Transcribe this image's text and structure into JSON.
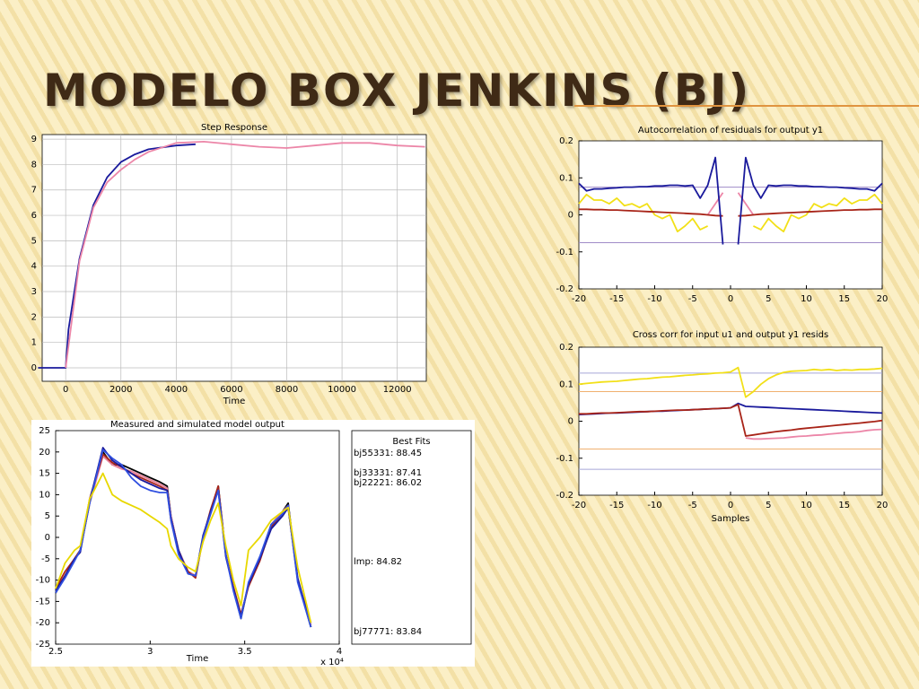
{
  "slide_title": "MODELO BOX JENKINS (BJ)",
  "chart_data": [
    {
      "type": "line",
      "title": "Step Response",
      "xlabel": "Time",
      "xlim": [
        -850,
        13050
      ],
      "xticks": [
        0,
        2000,
        4000,
        6000,
        8000,
        10000,
        12000
      ],
      "ylim": [
        -0.53,
        9.18
      ],
      "yticks": [
        0,
        1,
        2,
        3,
        4,
        5,
        6,
        7,
        8,
        9
      ],
      "grid": true,
      "series": [
        {
          "color": "#1a1a9c",
          "x": [
            -1000,
            0,
            100,
            500,
            1000,
            1500,
            2000,
            2500,
            3000,
            4000,
            4700
          ],
          "values": [
            0,
            0,
            1.5,
            4.3,
            6.4,
            7.5,
            8.1,
            8.4,
            8.6,
            8.75,
            8.8
          ]
        },
        {
          "color": "#ec86a8",
          "x": [
            0,
            500,
            1000,
            1500,
            2000,
            2500,
            3000,
            4000,
            5000,
            6000,
            7000,
            8000,
            9000,
            10000,
            11000,
            12000,
            13000
          ],
          "values": [
            0,
            4.2,
            6.3,
            7.3,
            7.8,
            8.2,
            8.5,
            8.85,
            8.9,
            8.8,
            8.7,
            8.65,
            8.75,
            8.85,
            8.85,
            8.75,
            8.7
          ]
        }
      ]
    },
    {
      "type": "line",
      "title": "Autocorrelation of residuals for output y1",
      "xlim": [
        -20,
        20
      ],
      "xticks": [
        -20,
        -15,
        -10,
        -5,
        0,
        5,
        10,
        15,
        20
      ],
      "ylim": [
        -0.2,
        0.2
      ],
      "yticks": [
        -0.2,
        -0.1,
        0,
        0.1,
        0.2
      ],
      "grid": false,
      "reference_lines": [
        {
          "value": 0.075,
          "color": "#a08cc8"
        },
        {
          "value": -0.075,
          "color": "#a08cc8"
        }
      ],
      "x": [
        -20,
        -19,
        -18,
        -17,
        -16,
        -15,
        -14,
        -13,
        -12,
        -11,
        -10,
        -9,
        -8,
        -7,
        -6,
        -5,
        -4,
        -3,
        -2,
        -1,
        0,
        1,
        2,
        3,
        4,
        5,
        6,
        7,
        8,
        9,
        10,
        11,
        12,
        13,
        14,
        15,
        16,
        17,
        18,
        19,
        20
      ],
      "series": [
        {
          "color": "#f2e018",
          "values": [
            0.03,
            0.055,
            0.04,
            0.04,
            0.03,
            0.045,
            0.025,
            0.03,
            0.02,
            0.03,
            0.0,
            -0.01,
            0.0,
            -0.045,
            -0.03,
            -0.01,
            -0.04,
            -0.03,
            null,
            null,
            null,
            null,
            null,
            -0.03,
            -0.04,
            -0.01,
            -0.03,
            -0.045,
            0.0,
            -0.01,
            0.0,
            0.03,
            0.02,
            0.03,
            0.025,
            0.045,
            0.03,
            0.04,
            0.04,
            0.055,
            0.03
          ]
        },
        {
          "color": "#ec86a8",
          "values": [
            null,
            null,
            null,
            null,
            null,
            null,
            null,
            null,
            null,
            null,
            null,
            null,
            null,
            null,
            null,
            null,
            null,
            0.0,
            0.03,
            0.06,
            null,
            0.06,
            0.03,
            0.0,
            null,
            null,
            null,
            null,
            null,
            null,
            null,
            null,
            null,
            null,
            null,
            null,
            null,
            null,
            null,
            null,
            null
          ]
        },
        {
          "color": "#a82418",
          "values": [
            0.015,
            0.015,
            0.014,
            0.014,
            0.013,
            0.013,
            0.012,
            0.011,
            0.01,
            0.009,
            0.008,
            0.007,
            0.006,
            0.005,
            0.004,
            0.003,
            0.002,
            0.0,
            -0.002,
            -0.003,
            null,
            -0.003,
            -0.002,
            0.0,
            0.002,
            0.003,
            0.004,
            0.005,
            0.006,
            0.007,
            0.008,
            0.009,
            0.01,
            0.011,
            0.012,
            0.013,
            0.013,
            0.014,
            0.014,
            0.015,
            0.015
          ]
        },
        {
          "color": "#1a1a9c",
          "values": [
            0.085,
            0.065,
            0.07,
            0.07,
            0.072,
            0.073,
            0.075,
            0.075,
            0.076,
            0.076,
            0.078,
            0.078,
            0.08,
            0.08,
            0.078,
            0.08,
            0.045,
            0.08,
            0.155,
            -0.08,
            null,
            -0.08,
            0.155,
            0.08,
            0.045,
            0.08,
            0.078,
            0.08,
            0.08,
            0.078,
            0.078,
            0.076,
            0.076,
            0.075,
            0.075,
            0.073,
            0.072,
            0.07,
            0.07,
            0.065,
            0.085
          ]
        }
      ]
    },
    {
      "type": "line",
      "title": "Cross corr for input u1 and output y1 resids",
      "xlabel": "Samples",
      "xlim": [
        -20,
        20
      ],
      "xticks": [
        -20,
        -15,
        -10,
        -5,
        0,
        5,
        10,
        15,
        20
      ],
      "ylim": [
        -0.2,
        0.2
      ],
      "yticks": [
        -0.2,
        -0.1,
        0,
        0.1,
        0.2
      ],
      "grid": false,
      "reference_lines": [
        {
          "value": 0.13,
          "color": "#a8a8d8"
        },
        {
          "value": -0.13,
          "color": "#a8a8d8"
        },
        {
          "value": 0.08,
          "color": "#f0b070"
        },
        {
          "value": -0.075,
          "color": "#f0b070"
        }
      ],
      "x": [
        -20,
        -19,
        -18,
        -17,
        -16,
        -15,
        -14,
        -13,
        -12,
        -11,
        -10,
        -9,
        -8,
        -7,
        -6,
        -5,
        -4,
        -3,
        -2,
        -1,
        0,
        1,
        2,
        3,
        4,
        5,
        6,
        7,
        8,
        9,
        10,
        11,
        12,
        13,
        14,
        15,
        16,
        17,
        18,
        19,
        20
      ],
      "series": [
        {
          "color": "#f2e018",
          "values": [
            0.1,
            0.102,
            0.104,
            0.106,
            0.107,
            0.108,
            0.11,
            0.112,
            0.114,
            0.115,
            0.117,
            0.119,
            0.12,
            0.122,
            0.124,
            0.125,
            0.127,
            0.128,
            0.13,
            0.131,
            0.133,
            0.145,
            0.065,
            0.08,
            0.1,
            0.115,
            0.125,
            0.132,
            0.135,
            0.136,
            0.137,
            0.14,
            0.138,
            0.14,
            0.137,
            0.139,
            0.138,
            0.14,
            0.14,
            0.141,
            0.143
          ]
        },
        {
          "color": "#ec86a8",
          "values": [
            null,
            null,
            null,
            null,
            null,
            null,
            null,
            null,
            null,
            null,
            null,
            null,
            null,
            null,
            null,
            null,
            null,
            null,
            null,
            null,
            null,
            null,
            -0.045,
            -0.048,
            -0.048,
            -0.047,
            -0.046,
            -0.045,
            -0.043,
            -0.041,
            -0.04,
            -0.038,
            -0.037,
            -0.035,
            -0.033,
            -0.031,
            -0.03,
            -0.028,
            -0.025,
            -0.023,
            -0.022
          ]
        },
        {
          "color": "#1a1a9c",
          "values": [
            0.018,
            0.019,
            0.02,
            0.021,
            0.022,
            0.022,
            0.023,
            0.024,
            0.025,
            0.026,
            0.027,
            0.027,
            0.028,
            0.029,
            0.03,
            0.031,
            0.032,
            0.033,
            0.034,
            0.035,
            0.036,
            0.048,
            0.04,
            0.039,
            0.038,
            0.037,
            0.036,
            0.035,
            0.034,
            0.033,
            0.032,
            0.031,
            0.03,
            0.029,
            0.028,
            0.027,
            0.026,
            0.025,
            0.024,
            0.023,
            0.022
          ]
        },
        {
          "color": "#a82418",
          "values": [
            0.02,
            0.02,
            0.021,
            0.022,
            0.022,
            0.023,
            0.024,
            0.025,
            0.026,
            0.026,
            0.027,
            0.028,
            0.029,
            0.03,
            0.03,
            0.031,
            0.032,
            0.033,
            0.034,
            0.035,
            0.036,
            0.045,
            -0.04,
            -0.037,
            -0.034,
            -0.031,
            -0.028,
            -0.026,
            -0.024,
            -0.021,
            -0.019,
            -0.017,
            -0.015,
            -0.013,
            -0.011,
            -0.009,
            -0.007,
            -0.005,
            -0.003,
            -0.001,
            0.002
          ]
        }
      ]
    },
    {
      "type": "line",
      "title": "Measured and simulated model output",
      "xlabel": "Time",
      "x_multiplier": "x 10⁴",
      "legend_title": "Best Fits",
      "xlim": [
        2.5,
        4
      ],
      "xticks": [
        2.5,
        3,
        3.5,
        4
      ],
      "ylim": [
        -25,
        25
      ],
      "yticks": [
        -25,
        -20,
        -15,
        -10,
        -5,
        0,
        5,
        10,
        15,
        20,
        25
      ],
      "grid": false,
      "x": [
        2.5,
        2.55,
        2.6,
        2.63,
        2.68,
        2.75,
        2.8,
        2.85,
        2.9,
        2.95,
        3.0,
        3.05,
        3.09,
        3.11,
        3.15,
        3.2,
        3.24,
        3.28,
        3.32,
        3.36,
        3.4,
        3.44,
        3.48,
        3.52,
        3.58,
        3.64,
        3.7,
        3.73,
        3.78,
        3.85
      ],
      "series": [
        {
          "color": "#000000",
          "values": [
            -13,
            -9,
            -5,
            -3,
            8,
            20,
            17,
            17,
            16,
            15,
            14,
            13,
            12,
            5,
            -3,
            -8,
            -9,
            0,
            6,
            12,
            -4,
            -12,
            -19,
            -11,
            -5,
            3,
            6,
            8,
            -10,
            -21
          ]
        },
        {
          "name": "bj55331: 88.45",
          "color": "#e8809a",
          "values": [
            -12,
            -9,
            -5,
            -3,
            8,
            19,
            17,
            16,
            15.5,
            14.5,
            13.5,
            12.5,
            11.5,
            5,
            -3,
            -8,
            -9,
            0,
            6,
            11.5,
            -4,
            -12,
            -18.5,
            -11,
            -5,
            3,
            6,
            7.5,
            -10,
            -20.5
          ]
        },
        {
          "name": "bj33331: 87.41",
          "color": "#a82418",
          "values": [
            -12,
            -8,
            -5,
            -3,
            9,
            19.5,
            17.5,
            16.5,
            15,
            14,
            13,
            12,
            11,
            4,
            -3.5,
            -8,
            -9.5,
            0,
            6.5,
            12,
            -4,
            -11.5,
            -18,
            -11.5,
            -5.5,
            2.5,
            5.5,
            7,
            -10,
            -20
          ]
        },
        {
          "name": "bj22221: 86.02",
          "color": "#1a1a9c",
          "values": [
            -12.5,
            -9,
            -5,
            -3.5,
            8.5,
            21,
            18,
            16.5,
            15,
            13.5,
            12.5,
            11.5,
            11,
            4.5,
            -3,
            -8.5,
            -9,
            0.5,
            6,
            11,
            -4.5,
            -12,
            -18.5,
            -11,
            -5,
            2,
            5,
            7,
            -9.5,
            -21
          ]
        },
        {
          "name": "lmp: 84.82",
          "color": "#3050e0",
          "values": [
            -13,
            -9.5,
            -5.5,
            -3,
            8,
            20.5,
            18.5,
            17,
            14,
            12,
            11,
            10.5,
            10.5,
            4,
            -4,
            -8.5,
            -9,
            0,
            5.5,
            11,
            -4,
            -12.5,
            -19,
            -10.5,
            -4.5,
            3,
            5.5,
            7.5,
            -10.5,
            -21
          ]
        },
        {
          "name": "bj77771: 83.84",
          "color": "#e8d800",
          "values": [
            -12,
            -6,
            -3,
            -2,
            9,
            15,
            10,
            8.5,
            7.5,
            6.5,
            5,
            3.5,
            2,
            -2,
            -5,
            -7,
            -8,
            -1,
            4,
            8,
            -2,
            -10,
            -16,
            -3,
            0,
            4,
            6,
            7,
            -7,
            -20
          ]
        }
      ]
    }
  ]
}
